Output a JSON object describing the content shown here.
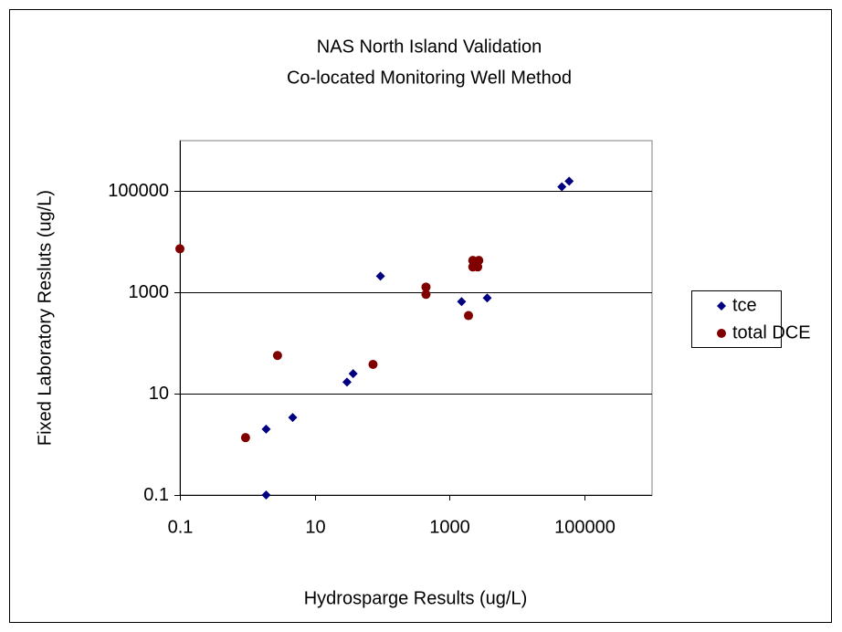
{
  "chart_data": {
    "type": "scatter",
    "title": "NAS North Island Validation",
    "subtitle": "Co-located Monitoring Well Method",
    "x_label": "Hydrosparge Results (ug/L)",
    "y_label": "Fixed Laboratory Resluts (ug/L)",
    "xscale": "log",
    "yscale": "log",
    "xlim": [
      0.1,
      1000000
    ],
    "ylim": [
      0.1,
      1000000
    ],
    "xticks": [
      0.1,
      10,
      1000,
      100000
    ],
    "yticks": [
      0.1,
      10,
      1000,
      100000
    ],
    "grid": true,
    "legend": "right",
    "series": [
      {
        "name": "tce",
        "color": "#000080",
        "marker": "diamond",
        "x": [
          1.9,
          1.9,
          4.7,
          30,
          37,
          94,
          1500,
          3600,
          46000,
          59000
        ],
        "values": [
          0.1,
          2,
          3.4,
          17,
          25,
          2100,
          660,
          780,
          123000,
          158000
        ]
      },
      {
        "name": "total DCE",
        "color": "#800000",
        "marker": "circle",
        "x": [
          0.1,
          0.94,
          2.8,
          73,
          445,
          445,
          1900,
          2200,
          2200,
          2600,
          2700
        ],
        "values": [
          7300,
          1.36,
          57,
          38,
          1280,
          920,
          350,
          3200,
          4300,
          3200,
          4300
        ]
      }
    ]
  }
}
